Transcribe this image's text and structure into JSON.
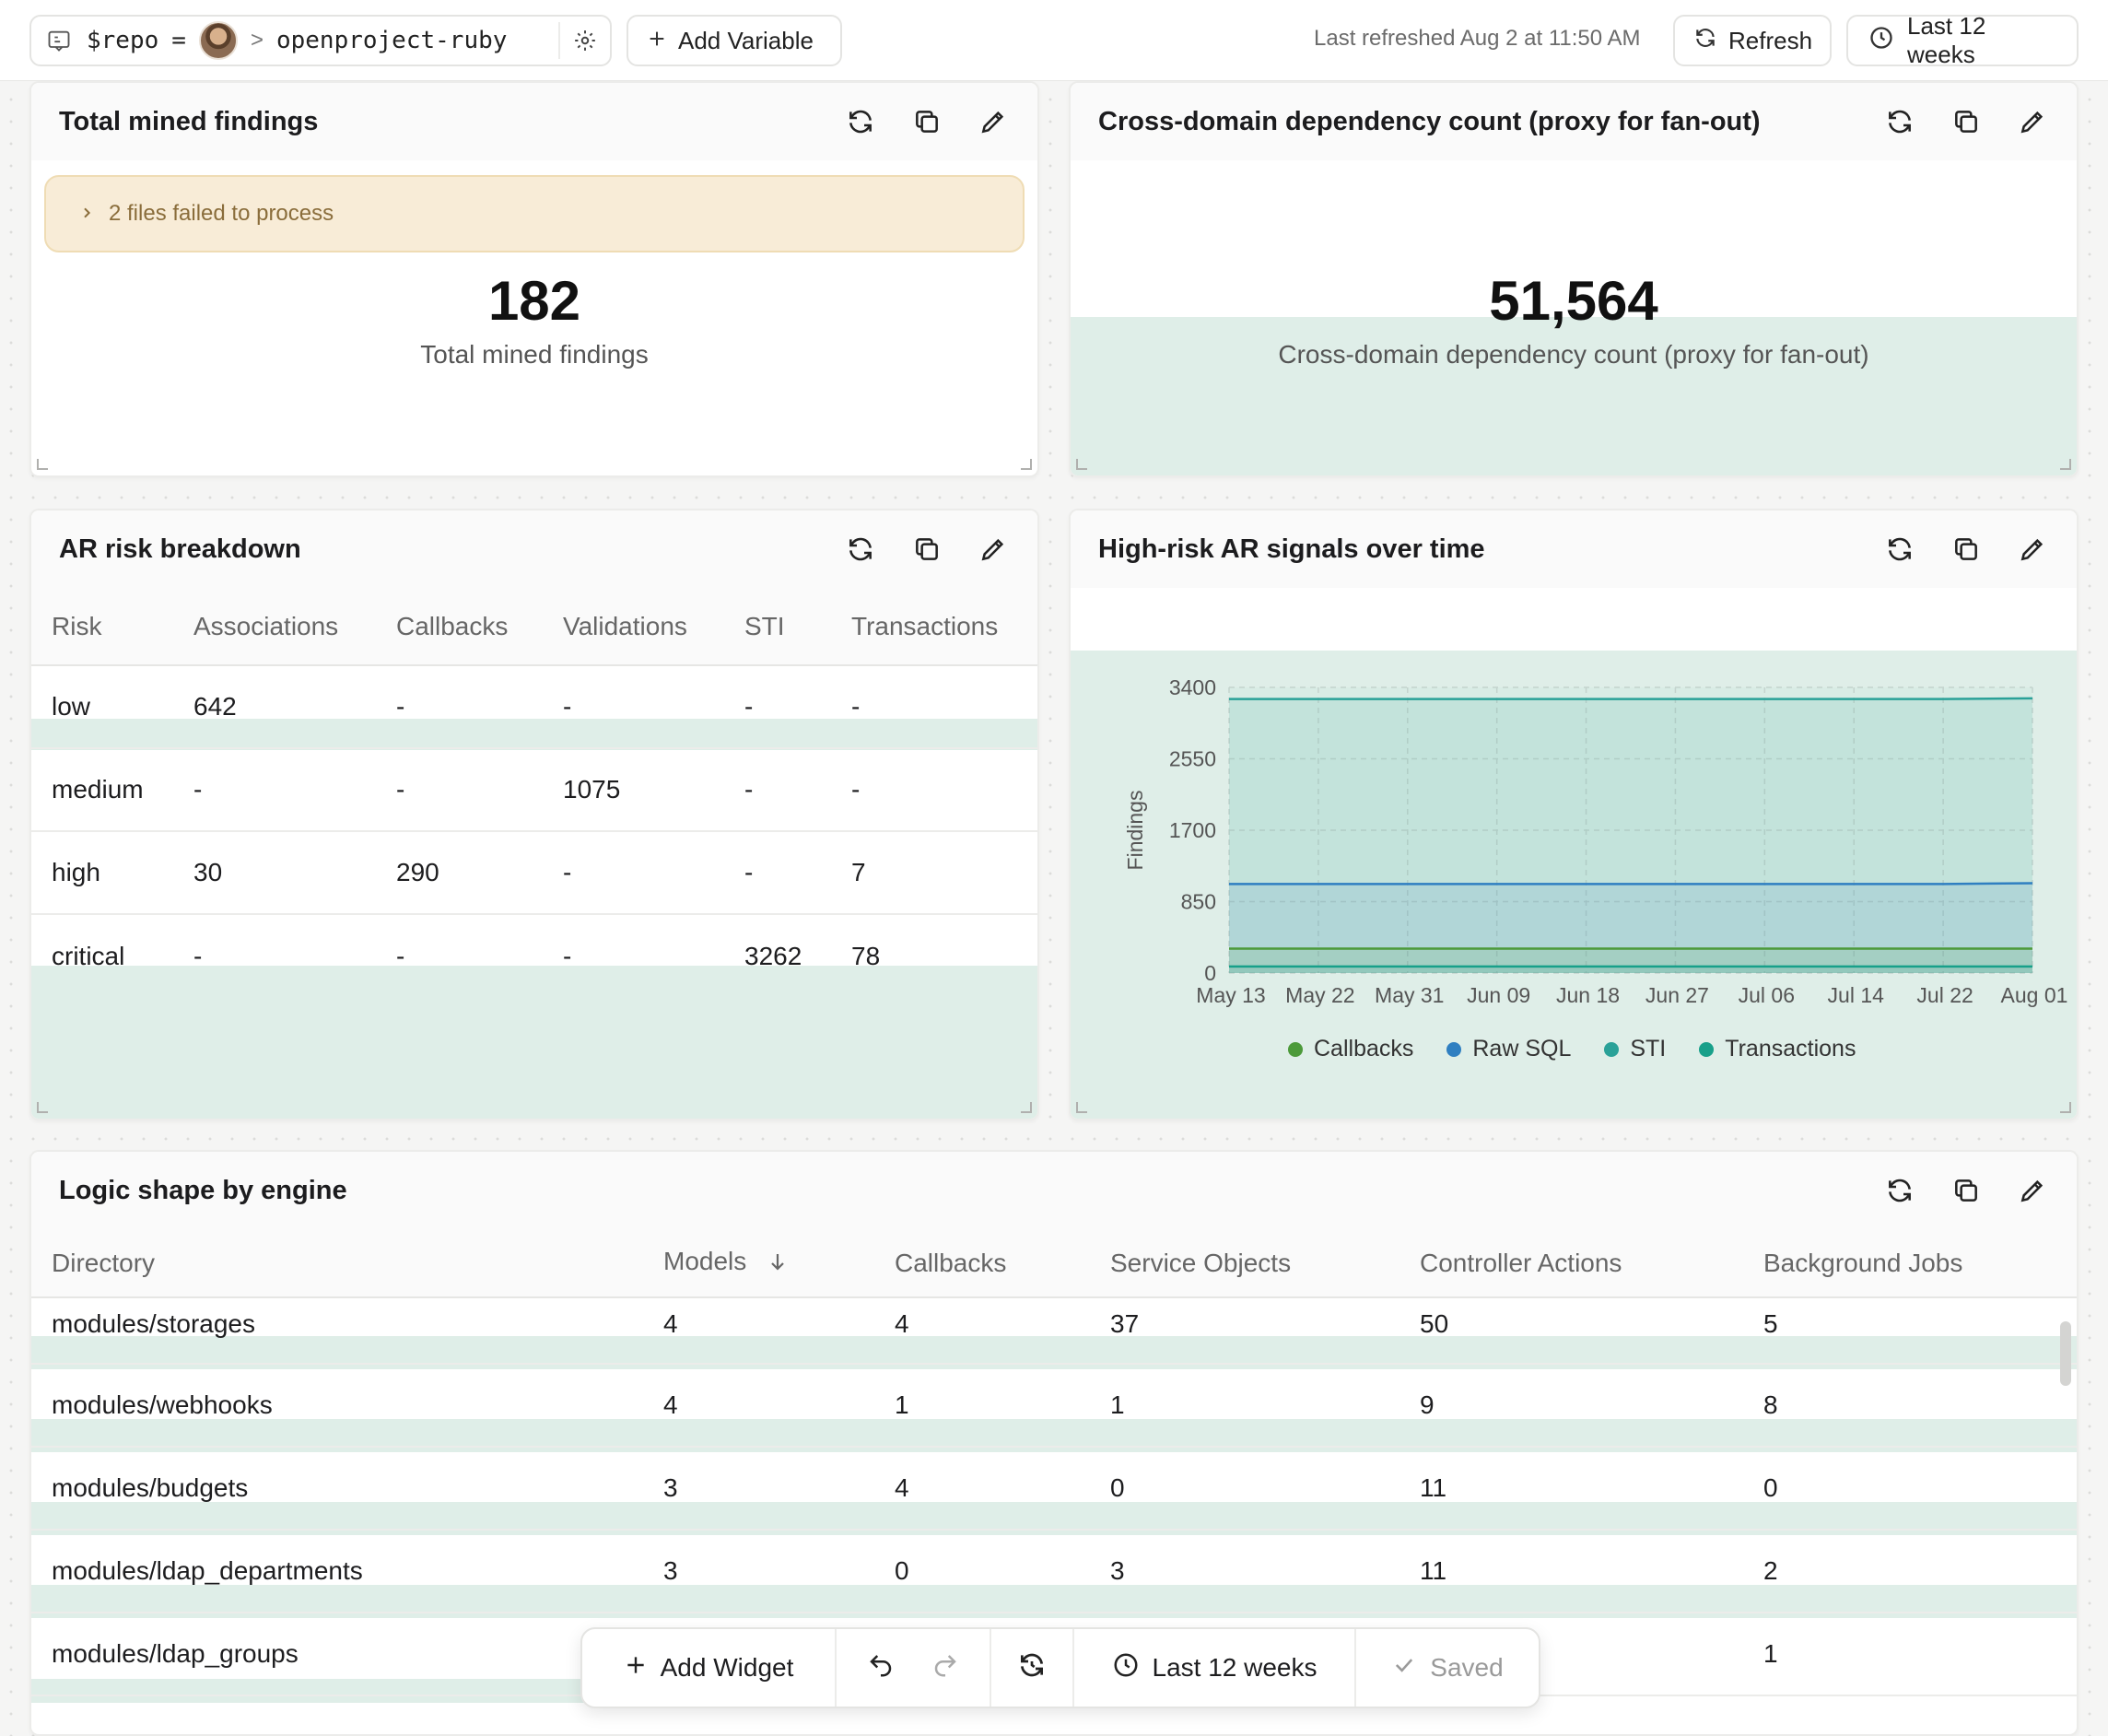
{
  "topbar": {
    "var_name": "$repo",
    "var_op": "=",
    "var_separator": ">",
    "var_value": "openproject-ruby",
    "add_variable": "Add Variable",
    "last_refreshed": "Last refreshed Aug 2 at 11:50 AM",
    "refresh": "Refresh",
    "range": "Last 12 weeks"
  },
  "w1": {
    "title": "Total mined findings",
    "warning": "2 files failed to process",
    "value": "182",
    "label": "Total mined findings"
  },
  "w2": {
    "title": "Cross-domain dependency count (proxy for fan-out)",
    "value": "51,564",
    "label": "Cross-domain dependency count (proxy for fan-out)"
  },
  "w3": {
    "title": "AR risk breakdown",
    "columns": [
      "Risk",
      "Associations",
      "Callbacks",
      "Validations",
      "STI",
      "Transactions"
    ],
    "rows": [
      [
        "low",
        "642",
        "-",
        "-",
        "-",
        "-"
      ],
      [
        "medium",
        "-",
        "-",
        "1075",
        "-",
        "-"
      ],
      [
        "high",
        "30",
        "290",
        "-",
        "-",
        "7"
      ],
      [
        "critical",
        "-",
        "-",
        "-",
        "3262",
        "78"
      ]
    ]
  },
  "w4": {
    "title": "High-risk AR signals over time"
  },
  "chart_data": {
    "type": "area",
    "title": "High-risk AR signals over time",
    "ylabel": "Findings",
    "xlabel": "",
    "ylim": [
      0,
      3400
    ],
    "yticks": [
      "3400",
      "2550",
      "1700",
      "850",
      "0"
    ],
    "x": [
      "May 13",
      "May 22",
      "May 31",
      "Jun 09",
      "Jun 18",
      "Jun 27",
      "Jul 06",
      "Jul 14",
      "Jul 22",
      "Aug 01"
    ],
    "series": [
      {
        "name": "Callbacks",
        "color": "#4c9a3a",
        "values": [
          290,
          290,
          290,
          290,
          290,
          290,
          290,
          290,
          290,
          290
        ]
      },
      {
        "name": "Raw SQL",
        "color": "#2f7fc1",
        "values": [
          1060,
          1060,
          1060,
          1060,
          1060,
          1060,
          1060,
          1060,
          1060,
          1070
        ]
      },
      {
        "name": "STI",
        "color": "#2aa198",
        "values": [
          3262,
          3262,
          3262,
          3262,
          3262,
          3262,
          3262,
          3262,
          3262,
          3270
        ]
      },
      {
        "name": "Transactions",
        "color": "#18a08a",
        "values": [
          78,
          78,
          78,
          78,
          78,
          78,
          78,
          78,
          78,
          78
        ]
      }
    ],
    "grid": true,
    "legend": "bottom"
  },
  "w5": {
    "title": "Logic shape by engine",
    "columns": [
      "Directory",
      "Models",
      "Callbacks",
      "Service Objects",
      "Controller Actions",
      "Background Jobs"
    ],
    "rows": [
      [
        "modules/storages",
        "4",
        "4",
        "37",
        "50",
        "5"
      ],
      [
        "modules/webhooks",
        "4",
        "1",
        "1",
        "9",
        "8"
      ],
      [
        "modules/budgets",
        "3",
        "4",
        "0",
        "11",
        "0"
      ],
      [
        "modules/ldap_departments",
        "3",
        "0",
        "3",
        "11",
        "2"
      ],
      [
        "modules/ldap_groups",
        "",
        "",
        "",
        "",
        "1"
      ]
    ]
  },
  "floatbar": {
    "add_widget": "Add Widget",
    "range": "Last 12 weeks",
    "saved": "Saved"
  }
}
